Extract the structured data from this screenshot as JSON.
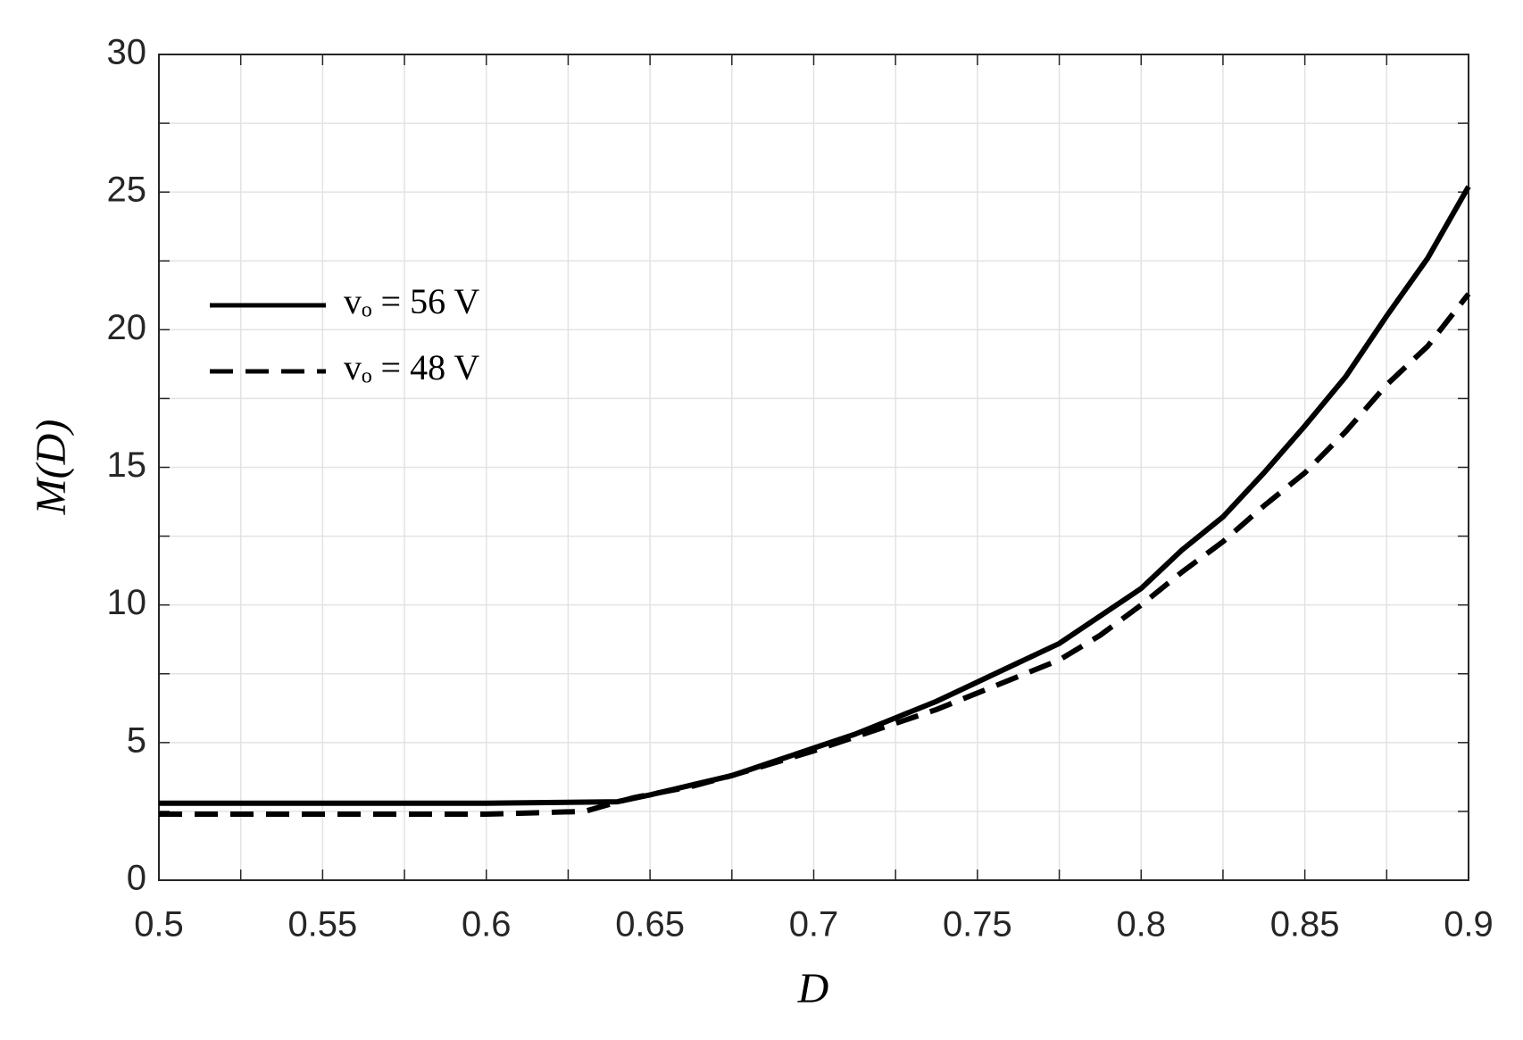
{
  "chart_data": {
    "type": "line",
    "xlabel": "D",
    "ylabel": "M(D)",
    "xlim": [
      0.5,
      0.9
    ],
    "xticks": [
      0.5,
      0.55,
      0.6,
      0.65,
      0.7,
      0.75,
      0.8,
      0.85,
      0.9
    ],
    "xminorticks": [
      0.525,
      0.575,
      0.625,
      0.675,
      0.725,
      0.775,
      0.825,
      0.875
    ],
    "ylim": [
      0,
      30
    ],
    "yticks": [
      0,
      5,
      10,
      15,
      20,
      25,
      30
    ],
    "yminorticks": [
      2.5,
      7.5,
      12.5,
      17.5,
      22.5,
      27.5
    ],
    "grid": true,
    "legend": "upper left",
    "series": [
      {
        "name": "vₒ = 56 V",
        "color": "#000000",
        "dash": "solid",
        "x": [
          0.5,
          0.55,
          0.6,
          0.64,
          0.65,
          0.6625,
          0.675,
          0.6875,
          0.7,
          0.7125,
          0.725,
          0.7375,
          0.75,
          0.7625,
          0.775,
          0.7875,
          0.8,
          0.8125,
          0.825,
          0.8375,
          0.85,
          0.8625,
          0.875,
          0.8875,
          0.9
        ],
        "values": [
          2.8,
          2.8,
          2.8,
          2.85,
          3.1,
          3.45,
          3.8,
          4.3,
          4.8,
          5.3,
          5.9,
          6.5,
          7.2,
          7.9,
          8.6,
          9.6,
          10.6,
          12.0,
          13.2,
          14.8,
          16.5,
          18.3,
          20.5,
          22.6,
          25.2
        ]
      },
      {
        "name": "vₒ = 48 V",
        "color": "#000000",
        "dash": "dashed",
        "x": [
          0.5,
          0.55,
          0.6,
          0.63,
          0.645,
          0.6625,
          0.675,
          0.6875,
          0.7,
          0.7125,
          0.725,
          0.7375,
          0.75,
          0.7625,
          0.775,
          0.7875,
          0.8,
          0.8125,
          0.825,
          0.8375,
          0.85,
          0.8625,
          0.875,
          0.8875,
          0.9
        ],
        "values": [
          2.4,
          2.4,
          2.4,
          2.5,
          3.0,
          3.4,
          3.8,
          4.25,
          4.7,
          5.2,
          5.7,
          6.2,
          6.8,
          7.4,
          8.0,
          8.9,
          10.0,
          11.2,
          12.3,
          13.6,
          14.8,
          16.3,
          18.0,
          19.4,
          21.3
        ]
      }
    ]
  }
}
